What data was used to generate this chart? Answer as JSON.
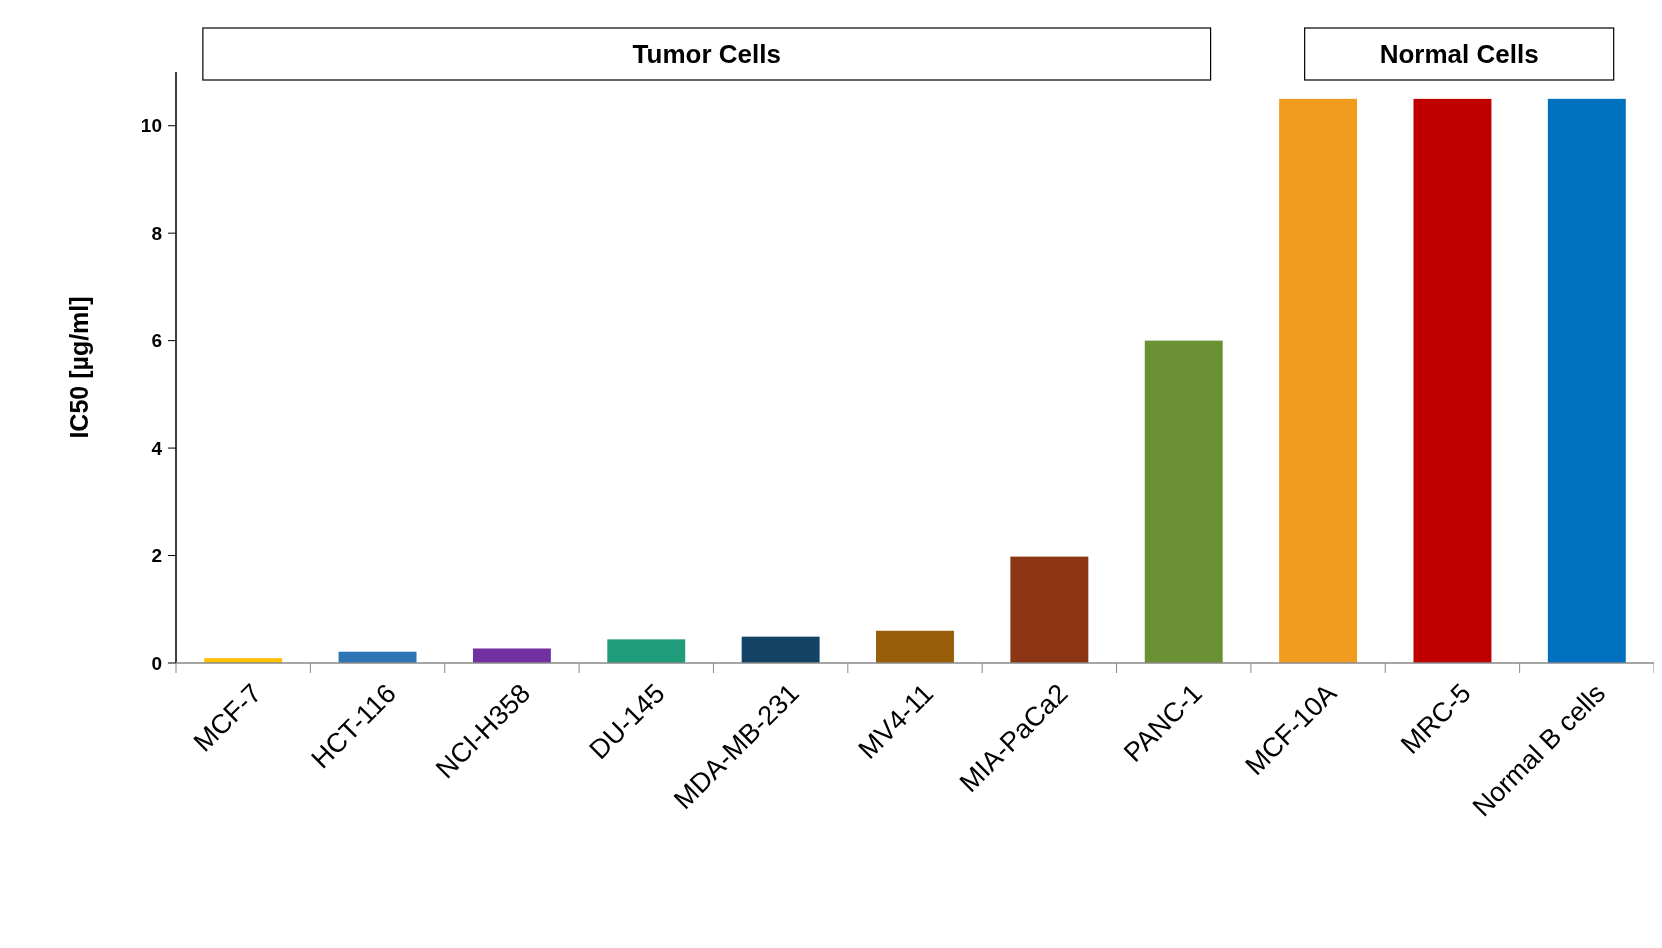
{
  "chart_data": {
    "type": "bar",
    "ylabel": "IC50 [µg/ml]",
    "categories": [
      "MCF-7",
      "HCT-116",
      "NCI-H358",
      "DU-145",
      "MDA-MB-231",
      "MV4-11",
      "MIA-PaCa2",
      "PANC-1",
      "MCF-10A",
      "MRC-5",
      "Normal B cells"
    ],
    "values": [
      0.09,
      0.21,
      0.27,
      0.44,
      0.49,
      0.6,
      1.98,
      6.0,
      10.5,
      10.5,
      10.5
    ],
    "colors": [
      "#ffc000",
      "#2e75b6",
      "#7030a0",
      "#1f9c7a",
      "#134466",
      "#985e09",
      "#8b3514",
      "#6a9133",
      "#f09c1e",
      "#c00000",
      "#0070c0"
    ],
    "ylim": [
      0,
      11
    ],
    "yticks": [
      0,
      2,
      4,
      6,
      8,
      10
    ],
    "annotations": [
      "Tumor Cells",
      "Normal Cells"
    ]
  }
}
